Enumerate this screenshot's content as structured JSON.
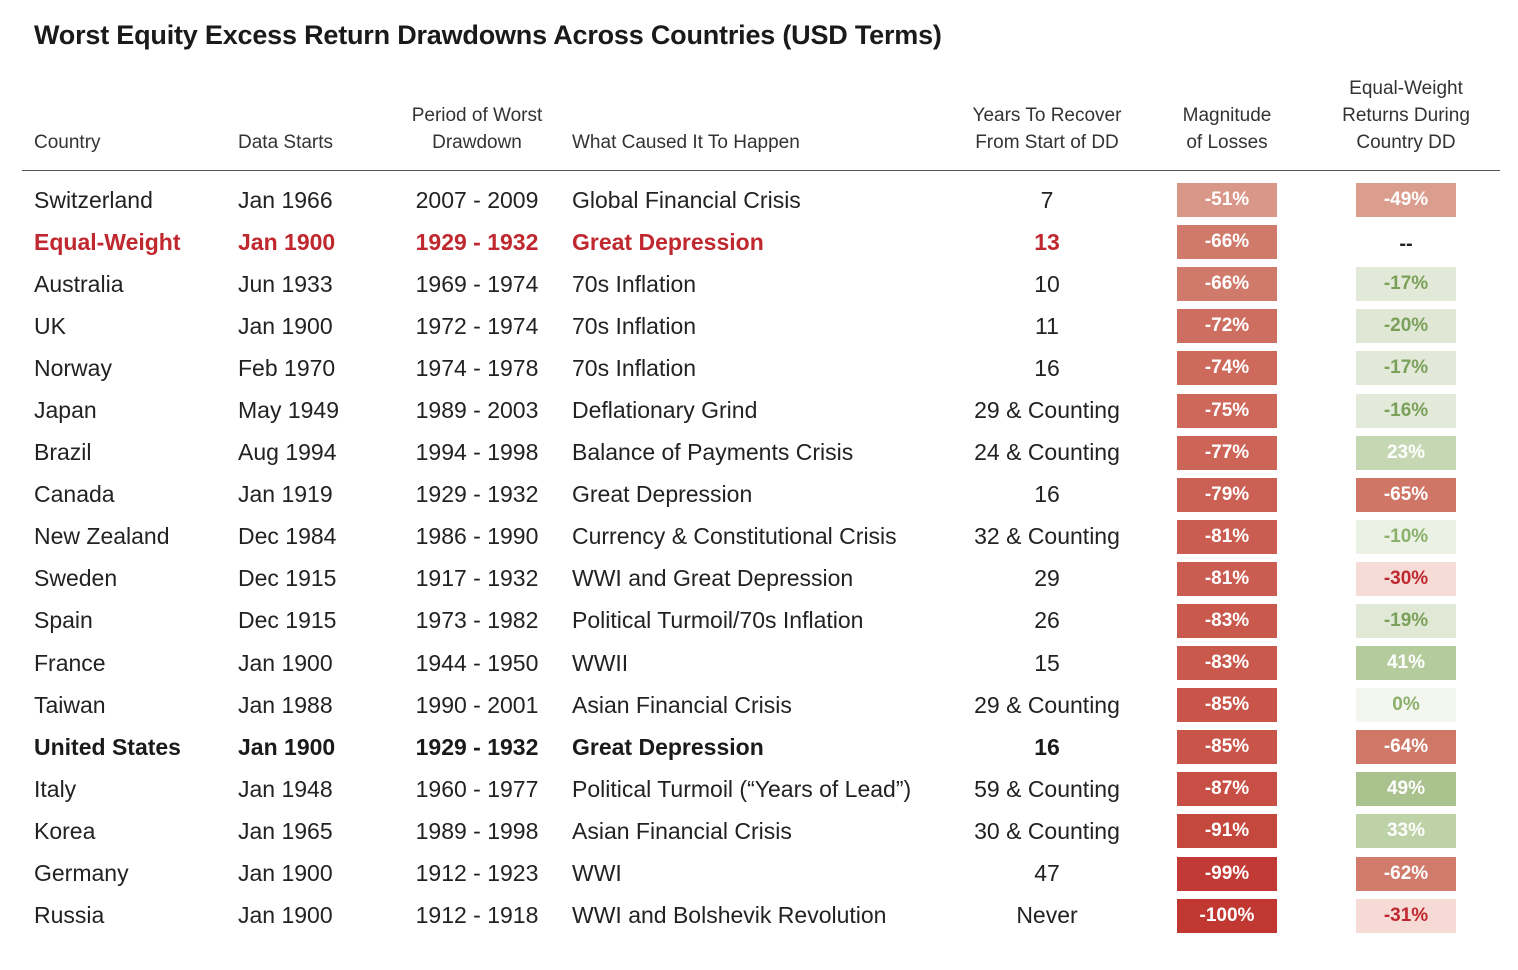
{
  "title": "Worst Equity Excess Return Drawdowns Across Countries (USD Terms)",
  "headers": {
    "country": "Country",
    "start": "Data Starts",
    "period_l1": "Period of Worst",
    "period_l2": "Drawdown",
    "cause": "What Caused It To Happen",
    "years_l1": "Years To Recover",
    "years_l2": "From Start of DD",
    "mag_l1": "Magnitude",
    "mag_l2": "of Losses",
    "eq_l1": "Equal-Weight",
    "eq_l2": "Returns During",
    "eq_l3": "Country DD"
  },
  "rows": [
    {
      "country": "Switzerland",
      "start": "Jan 1966",
      "period": "2007 - 2009",
      "cause": "Global Financial Crisis",
      "years": "7",
      "magnitude": "-51%",
      "mag_color": "#d9978a",
      "eq": "-49%",
      "eq_color": "#db9d8e",
      "eq_text": "#ffffff",
      "style": "normal"
    },
    {
      "country": "Equal-Weight",
      "start": "Jan 1900",
      "period": "1929 - 1932",
      "cause": "Great Depression",
      "years": "13",
      "magnitude": "-66%",
      "mag_color": "#d07a6c",
      "eq": "--",
      "eq_color": "",
      "eq_text": "#222222",
      "style": "eq"
    },
    {
      "country": "Australia",
      "start": "Jun 1933",
      "period": "1969 - 1974",
      "cause": "70s Inflation",
      "years": "10",
      "magnitude": "-66%",
      "mag_color": "#d07a6c",
      "eq": "-17%",
      "eq_color": "#e2e9d8",
      "eq_text": "#7aa05a",
      "style": "normal"
    },
    {
      "country": "UK",
      "start": "Jan 1900",
      "period": "1972 - 1974",
      "cause": "70s Inflation",
      "years": "11",
      "magnitude": "-72%",
      "mag_color": "#ce6e60",
      "eq": "-20%",
      "eq_color": "#e0e8d5",
      "eq_text": "#7aa05a",
      "style": "normal"
    },
    {
      "country": "Norway",
      "start": "Feb 1970",
      "period": "1974 - 1978",
      "cause": "70s Inflation",
      "years": "16",
      "magnitude": "-74%",
      "mag_color": "#cd6a5c",
      "eq": "-17%",
      "eq_color": "#e2e9d8",
      "eq_text": "#7aa05a",
      "style": "normal"
    },
    {
      "country": "Japan",
      "start": "May 1949",
      "period": "1989 - 2003",
      "cause": "Deflationary Grind",
      "years": "29 & Counting",
      "magnitude": "-75%",
      "mag_color": "#cd685a",
      "eq": "-16%",
      "eq_color": "#e3eada",
      "eq_text": "#7aa05a",
      "style": "normal"
    },
    {
      "country": "Brazil",
      "start": "Aug 1994",
      "period": "1994 - 1998",
      "cause": "Balance of Payments Crisis",
      "years": "24 & Counting",
      "magnitude": "-77%",
      "mag_color": "#cc6457",
      "eq": "23%",
      "eq_color": "#c6d8b3",
      "eq_text": "#ffffff",
      "style": "normal"
    },
    {
      "country": "Canada",
      "start": "Jan 1919",
      "period": "1929 - 1932",
      "cause": "Great Depression",
      "years": "16",
      "magnitude": "-79%",
      "mag_color": "#cb6054",
      "eq": "-65%",
      "eq_color": "#cf7666",
      "eq_text": "#ffffff",
      "style": "normal"
    },
    {
      "country": "New Zealand",
      "start": "Dec 1984",
      "period": "1986 - 1990",
      "cause": "Currency & Constitutional Crisis",
      "years": "32 & Counting",
      "magnitude": "-81%",
      "mag_color": "#ca5c51",
      "eq": "-10%",
      "eq_color": "#ebf1e4",
      "eq_text": "#8ab06a",
      "style": "normal"
    },
    {
      "country": "Sweden",
      "start": "Dec 1915",
      "period": "1917 - 1932",
      "cause": "WWI and Great Depression",
      "years": "29",
      "magnitude": "-81%",
      "mag_color": "#ca5c51",
      "eq": "-30%",
      "eq_color": "#f5dcd7",
      "eq_text": "#c0282f",
      "style": "normal"
    },
    {
      "country": "Spain",
      "start": "Dec 1915",
      "period": "1973 - 1982",
      "cause": "Political Turmoil/70s Inflation",
      "years": "26",
      "magnitude": "-83%",
      "mag_color": "#c9584d",
      "eq": "-19%",
      "eq_color": "#e1e9d6",
      "eq_text": "#7aa05a",
      "style": "normal"
    },
    {
      "country": "France",
      "start": "Jan 1900",
      "period": "1944 - 1950",
      "cause": "WWII",
      "years": "15",
      "magnitude": "-83%",
      "mag_color": "#c9584d",
      "eq": "41%",
      "eq_color": "#b4cc9c",
      "eq_text": "#ffffff",
      "style": "normal"
    },
    {
      "country": "Taiwan",
      "start": "Jan 1988",
      "period": "1990 - 2001",
      "cause": "Asian Financial Crisis",
      "years": "29 & Counting",
      "magnitude": "-85%",
      "mag_color": "#c8544a",
      "eq": "0%",
      "eq_color": "#f3f7ef",
      "eq_text": "#8ab06a",
      "style": "normal"
    },
    {
      "country": "United States",
      "start": "Jan 1900",
      "period": "1929 - 1932",
      "cause": "Great Depression",
      "years": "16",
      "magnitude": "-85%",
      "mag_color": "#c8544a",
      "eq": "-64%",
      "eq_color": "#d07868",
      "eq_text": "#ffffff",
      "style": "us"
    },
    {
      "country": "Italy",
      "start": "Jan 1948",
      "period": "1960 - 1977",
      "cause": "Political Turmoil (“Years of Lead”)",
      "years": "59 & Counting",
      "magnitude": "-87%",
      "mag_color": "#c74f46",
      "eq": "49%",
      "eq_color": "#a9c28e",
      "eq_text": "#ffffff",
      "style": "normal"
    },
    {
      "country": "Korea",
      "start": "Jan 1965",
      "period": "1989 - 1998",
      "cause": "Asian Financial Crisis",
      "years": "30 & Counting",
      "magnitude": "-91%",
      "mag_color": "#c5483f",
      "eq": "33%",
      "eq_color": "#bdd2a7",
      "eq_text": "#ffffff",
      "style": "normal"
    },
    {
      "country": "Germany",
      "start": "Jan 1900",
      "period": "1912 - 1923",
      "cause": "WWI",
      "years": "47",
      "magnitude": "-99%",
      "mag_color": "#c23a35",
      "eq": "-62%",
      "eq_color": "#d17b6c",
      "eq_text": "#ffffff",
      "style": "normal"
    },
    {
      "country": "Russia",
      "start": "Jan 1900",
      "period": "1912 - 1918",
      "cause": "WWI and Bolshevik Revolution",
      "years": "Never",
      "magnitude": "-100%",
      "mag_color": "#c13833",
      "eq": "-31%",
      "eq_color": "#f5dad5",
      "eq_text": "#c0282f",
      "style": "normal"
    }
  ]
}
